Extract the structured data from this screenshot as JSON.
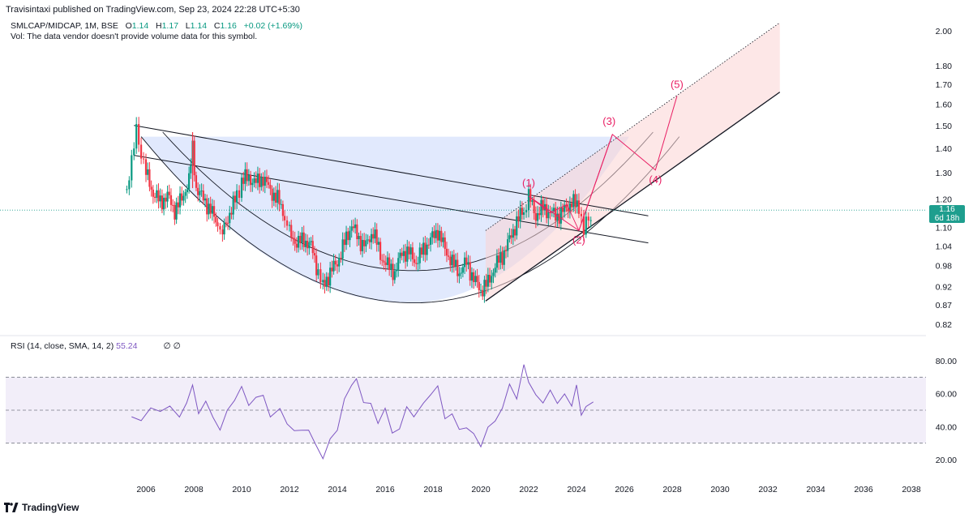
{
  "header": {
    "publisher": "Travisintaxi published on TradingView.com, Sep 23, 2024 22:28 UTC+5:30",
    "symbol": "SMLCAP/MIDCAP, 1M, BSE",
    "o_label": "O",
    "o": "1.14",
    "h_label": "H",
    "h": "1.17",
    "l_label": "L",
    "l": "1.14",
    "c_label": "C",
    "c": "1.16",
    "change": "+0.02 (+1.69%)",
    "volume_note": "Vol: The data vendor doesn't provide volume data for this symbol."
  },
  "rsi_header": {
    "label": "RSI (14, close, SMA, 14, 2)",
    "value": "55.24",
    "extra": "∅ ∅"
  },
  "price_tag": {
    "price": "1.16",
    "countdown": "6d 18h"
  },
  "brand": {
    "name": "TradingView"
  },
  "colors": {
    "up": "#089981",
    "down": "#f23645",
    "rsi": "#7e57c2",
    "wave": "#e91e63",
    "bowl": "#a9bff8",
    "channel": "#fbd3d3"
  },
  "chart_data": {
    "type": "candlestick",
    "interval": "1M",
    "x_axis": {
      "ticks": [
        "2006",
        "2008",
        "2010",
        "2012",
        "2014",
        "2016",
        "2018",
        "2020",
        "2022",
        "2024",
        "2026",
        "2028",
        "2030",
        "2032",
        "2034",
        "2036",
        "2038"
      ]
    },
    "y_axis": {
      "scale": "log",
      "ticks": [
        "2.00",
        "1.80",
        "1.70",
        "1.60",
        "1.50",
        "1.40",
        "1.30",
        "1.20",
        "1.10",
        "1.04",
        "0.98",
        "0.92",
        "0.87",
        "0.82"
      ]
    },
    "last_price": 1.16,
    "price_path": [
      [
        2005.2,
        1.23
      ],
      [
        2005.4,
        1.36
      ],
      [
        2005.6,
        1.47
      ],
      [
        2005.8,
        1.38
      ],
      [
        2006.0,
        1.3
      ],
      [
        2006.3,
        1.22
      ],
      [
        2006.6,
        1.19
      ],
      [
        2006.9,
        1.21
      ],
      [
        2007.2,
        1.16
      ],
      [
        2007.5,
        1.2
      ],
      [
        2007.8,
        1.27
      ],
      [
        2007.95,
        1.4
      ],
      [
        2008.1,
        1.24
      ],
      [
        2008.4,
        1.2
      ],
      [
        2008.7,
        1.16
      ],
      [
        2009.0,
        1.11
      ],
      [
        2009.2,
        1.08
      ],
      [
        2009.5,
        1.15
      ],
      [
        2009.8,
        1.21
      ],
      [
        2010.0,
        1.27
      ],
      [
        2010.3,
        1.28
      ],
      [
        2010.6,
        1.26
      ],
      [
        2010.9,
        1.28
      ],
      [
        2011.2,
        1.23
      ],
      [
        2011.5,
        1.2
      ],
      [
        2011.8,
        1.14
      ],
      [
        2012.0,
        1.08
      ],
      [
        2012.3,
        1.05
      ],
      [
        2012.6,
        1.06
      ],
      [
        2012.9,
        1.04
      ],
      [
        2013.2,
        0.96
      ],
      [
        2013.4,
        0.92
      ],
      [
        2013.7,
        0.96
      ],
      [
        2014.0,
        0.99
      ],
      [
        2014.3,
        1.05
      ],
      [
        2014.6,
        1.11
      ],
      [
        2014.9,
        1.06
      ],
      [
        2015.2,
        1.04
      ],
      [
        2015.5,
        1.09
      ],
      [
        2015.8,
        1.01
      ],
      [
        2016.1,
        0.98
      ],
      [
        2016.4,
        0.96
      ],
      [
        2016.7,
        1.02
      ],
      [
        2017.0,
        1.02
      ],
      [
        2017.3,
        0.99
      ],
      [
        2017.6,
        1.03
      ],
      [
        2017.9,
        1.06
      ],
      [
        2018.2,
        1.09
      ],
      [
        2018.5,
        1.03
      ],
      [
        2018.8,
        0.99
      ],
      [
        2019.1,
        0.96
      ],
      [
        2019.4,
        0.99
      ],
      [
        2019.7,
        0.94
      ],
      [
        2020.0,
        0.91
      ],
      [
        2020.3,
        0.93
      ],
      [
        2020.6,
        0.98
      ],
      [
        2020.9,
        1.01
      ],
      [
        2021.2,
        1.06
      ],
      [
        2021.5,
        1.12
      ],
      [
        2021.8,
        1.16
      ],
      [
        2022.0,
        1.21
      ],
      [
        2022.3,
        1.14
      ],
      [
        2022.6,
        1.17
      ],
      [
        2022.9,
        1.15
      ],
      [
        2023.2,
        1.14
      ],
      [
        2023.5,
        1.16
      ],
      [
        2023.8,
        1.19
      ],
      [
        2024.1,
        1.17
      ],
      [
        2024.3,
        1.09
      ],
      [
        2024.5,
        1.13
      ],
      [
        2024.7,
        1.16
      ]
    ],
    "rsi": {
      "upper_band": 70,
      "middle": 50,
      "lower_band": 30,
      "y_ticks": [
        "80.00",
        "60.00",
        "40.00",
        "20.00"
      ],
      "last_value": 55.24,
      "points": [
        [
          2005.4,
          46
        ],
        [
          2005.8,
          44
        ],
        [
          2006.2,
          50
        ],
        [
          2006.6,
          47
        ],
        [
          2007.0,
          51
        ],
        [
          2007.4,
          46
        ],
        [
          2007.7,
          53
        ],
        [
          2007.95,
          66
        ],
        [
          2008.2,
          50
        ],
        [
          2008.5,
          54
        ],
        [
          2008.8,
          46
        ],
        [
          2009.1,
          39
        ],
        [
          2009.4,
          48
        ],
        [
          2009.7,
          58
        ],
        [
          2010.0,
          63
        ],
        [
          2010.3,
          53
        ],
        [
          2010.6,
          59
        ],
        [
          2010.9,
          57
        ],
        [
          2011.2,
          48
        ],
        [
          2011.6,
          52
        ],
        [
          2011.9,
          42
        ],
        [
          2012.2,
          36
        ],
        [
          2012.5,
          40
        ],
        [
          2012.8,
          36
        ],
        [
          2013.1,
          30
        ],
        [
          2013.4,
          21
        ],
        [
          2013.7,
          31
        ],
        [
          2014.0,
          40
        ],
        [
          2014.3,
          55
        ],
        [
          2014.6,
          66
        ],
        [
          2014.8,
          69
        ],
        [
          2015.1,
          56
        ],
        [
          2015.4,
          52
        ],
        [
          2015.7,
          44
        ],
        [
          2016.0,
          50
        ],
        [
          2016.3,
          36
        ],
        [
          2016.6,
          40
        ],
        [
          2016.9,
          50
        ],
        [
          2017.2,
          48
        ],
        [
          2017.6,
          55
        ],
        [
          2017.9,
          60
        ],
        [
          2018.2,
          63
        ],
        [
          2018.5,
          47
        ],
        [
          2018.8,
          46
        ],
        [
          2019.1,
          39
        ],
        [
          2019.4,
          40
        ],
        [
          2019.7,
          34
        ],
        [
          2020.0,
          30
        ],
        [
          2020.3,
          38
        ],
        [
          2020.6,
          44
        ],
        [
          2020.9,
          52
        ],
        [
          2021.2,
          64
        ],
        [
          2021.5,
          59
        ],
        [
          2021.8,
          76
        ],
        [
          2022.0,
          66
        ],
        [
          2022.3,
          59
        ],
        [
          2022.6,
          56
        ],
        [
          2022.9,
          60
        ],
        [
          2023.2,
          56
        ],
        [
          2023.5,
          59
        ],
        [
          2023.8,
          52
        ],
        [
          2024.0,
          64
        ],
        [
          2024.2,
          45
        ],
        [
          2024.4,
          50
        ],
        [
          2024.7,
          55
        ]
      ]
    },
    "annotations": {
      "wave_labels": [
        "(1)",
        "(2)",
        "(3)",
        "(4)",
        "(5)"
      ],
      "wave_points": [
        [
          2022.0,
          1.21
        ],
        [
          2024.1,
          1.09
        ],
        [
          2025.5,
          1.46
        ],
        [
          2027.3,
          1.31
        ],
        [
          2028.2,
          1.64
        ]
      ]
    }
  }
}
